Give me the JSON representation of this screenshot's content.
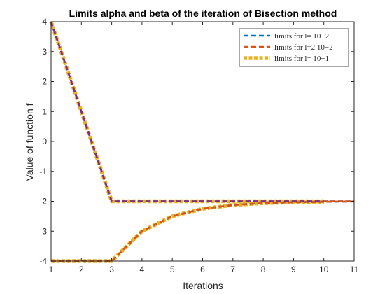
{
  "chart_data": {
    "type": "line",
    "title": "Limits alpha and beta of the iteration of Bisection method",
    "xlabel": "Iterations",
    "ylabel": "Value of function f",
    "xlim": [
      1,
      11
    ],
    "ylim": [
      -4,
      4
    ],
    "xticks": [
      1,
      2,
      3,
      4,
      5,
      6,
      7,
      8,
      9,
      10,
      11
    ],
    "yticks": [
      -4,
      -3,
      -2,
      -1,
      0,
      1,
      2,
      3,
      4
    ],
    "grid": false,
    "legend_position": "top-right",
    "series": [
      {
        "name": "limits for l= 10^-2",
        "legend_label": "limits for l= 10−2",
        "color": "#0072BD",
        "style": "dashed",
        "x": [
          1,
          2,
          3,
          4,
          5,
          6,
          7,
          8,
          9,
          10,
          11
        ],
        "alpha": [
          -4,
          -4,
          -4,
          -3,
          -2.5,
          -2.25,
          -2.125,
          -2.0625,
          -2.03125,
          -2.015625,
          -2.0078
        ],
        "beta": [
          4,
          1,
          -2,
          -2,
          -2,
          -2,
          -2,
          -2,
          -2,
          -2,
          -2
        ]
      },
      {
        "name": "limits for l=2 10^-2",
        "legend_label": "limits for l=2 10−2",
        "color": "#D95319",
        "style": "dashed",
        "x": [
          1,
          2,
          3,
          4,
          5,
          6,
          7,
          8,
          9,
          10,
          11
        ],
        "alpha": [
          -4,
          -4,
          -4,
          -3,
          -2.5,
          -2.25,
          -2.125,
          -2.0625,
          -2.03125,
          -2.015625,
          -2.0078
        ],
        "beta": [
          4,
          1,
          -2,
          -2,
          -2,
          -2,
          -2,
          -2,
          -2,
          -2,
          -2
        ]
      },
      {
        "name": "limits for l= 10^-1",
        "legend_label": "limits for l= 10−1",
        "color": "#EDB120",
        "style": "dotted",
        "x": [
          1,
          2,
          3,
          4,
          5,
          6,
          7,
          8,
          9,
          10
        ],
        "alpha": [
          -4,
          -4,
          -4,
          -3,
          -2.5,
          -2.25,
          -2.125,
          -2.0625,
          -2.03125,
          -2.015625
        ],
        "beta": [
          4,
          1,
          -2,
          -2,
          -2,
          -2,
          -2,
          -2,
          -2,
          -2
        ]
      },
      {
        "name": "overlay",
        "color": "#7E2F8E",
        "style": "dashed",
        "x": [
          1,
          2,
          3,
          4,
          5,
          6,
          7,
          8,
          9,
          10
        ],
        "alpha": null,
        "beta": [
          4,
          1,
          -2,
          -2,
          -2,
          -2,
          -2,
          -2,
          -2,
          -2
        ]
      }
    ]
  }
}
